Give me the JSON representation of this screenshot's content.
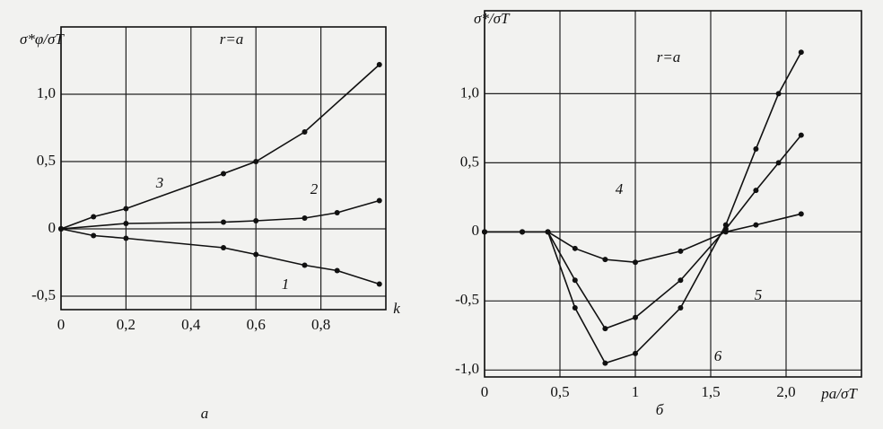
{
  "chart_data": [
    {
      "type": "line",
      "y_label": "σ*φ/σT",
      "x_label": "k",
      "annotation": "r=a",
      "caption": "а",
      "xlim": [
        0,
        1.0
      ],
      "xticks": [
        0,
        {
          "value": 0.2,
          "label": "0,2"
        },
        {
          "value": 0.4,
          "label": "0,4"
        },
        {
          "value": 0.6,
          "label": "0,6"
        },
        {
          "value": 0.8,
          "label": "0,8"
        }
      ],
      "ylim": [
        -0.6,
        1.5
      ],
      "yticks": [
        {
          "value": -0.5,
          "label": "-0,5"
        },
        0,
        {
          "value": 0.5,
          "label": "0,5"
        },
        {
          "value": 1.0,
          "label": "1,0"
        }
      ],
      "grid": true,
      "series": [
        {
          "name": "1",
          "color": "#111111",
          "x": [
            0,
            0.1,
            0.2,
            0.5,
            0.6,
            0.75,
            0.85,
            0.98
          ],
          "values": [
            0,
            -0.05,
            -0.07,
            -0.14,
            -0.19,
            -0.27,
            -0.31,
            -0.41
          ]
        },
        {
          "name": "2",
          "color": "#111111",
          "x": [
            0,
            0.2,
            0.5,
            0.6,
            0.75,
            0.85,
            0.98
          ],
          "values": [
            0,
            0.04,
            0.05,
            0.06,
            0.08,
            0.12,
            0.21
          ]
        },
        {
          "name": "3",
          "color": "#111111",
          "x": [
            0,
            0.1,
            0.2,
            0.5,
            0.6,
            0.75,
            0.98
          ],
          "values": [
            0,
            0.09,
            0.15,
            0.41,
            0.5,
            0.72,
            1.22
          ]
        }
      ]
    },
    {
      "type": "line",
      "y_label": "σ*/σT",
      "x_label": "pa/σT",
      "annotation": "r=a",
      "caption": "б",
      "xlim": [
        0,
        2.5
      ],
      "xticks": [
        0,
        {
          "value": 0.5,
          "label": "0,5"
        },
        1,
        {
          "value": 1.5,
          "label": "1,5"
        },
        {
          "value": 2.0,
          "label": "2,0"
        }
      ],
      "ylim": [
        -1.05,
        1.6
      ],
      "yticks": [
        {
          "value": -1.0,
          "label": "-1,0"
        },
        {
          "value": -0.5,
          "label": "-0,5"
        },
        0,
        {
          "value": 0.5,
          "label": "0,5"
        },
        {
          "value": 1.0,
          "label": "1,0"
        }
      ],
      "grid": true,
      "series": [
        {
          "name": "4",
          "color": "#111111",
          "x": [
            0,
            0.25,
            0.42,
            0.6,
            0.8,
            1.0,
            1.3,
            1.6,
            1.8,
            2.1
          ],
          "values": [
            0,
            0,
            0,
            -0.12,
            -0.2,
            -0.22,
            -0.14,
            0.0,
            0.05,
            0.13
          ]
        },
        {
          "name": "5",
          "color": "#111111",
          "x": [
            0,
            0.25,
            0.42,
            0.6,
            0.8,
            1.0,
            1.3,
            1.6,
            1.8,
            1.95,
            2.1
          ],
          "values": [
            0,
            0,
            0,
            -0.35,
            -0.7,
            -0.62,
            -0.35,
            0.02,
            0.3,
            0.5,
            0.7
          ]
        },
        {
          "name": "6",
          "color": "#111111",
          "x": [
            0,
            0.25,
            0.42,
            0.6,
            0.8,
            1.0,
            1.3,
            1.6,
            1.8,
            1.95,
            2.1
          ],
          "values": [
            0,
            0,
            0,
            -0.55,
            -0.95,
            -0.88,
            -0.55,
            0.05,
            0.6,
            1.0,
            1.3
          ]
        }
      ]
    }
  ]
}
